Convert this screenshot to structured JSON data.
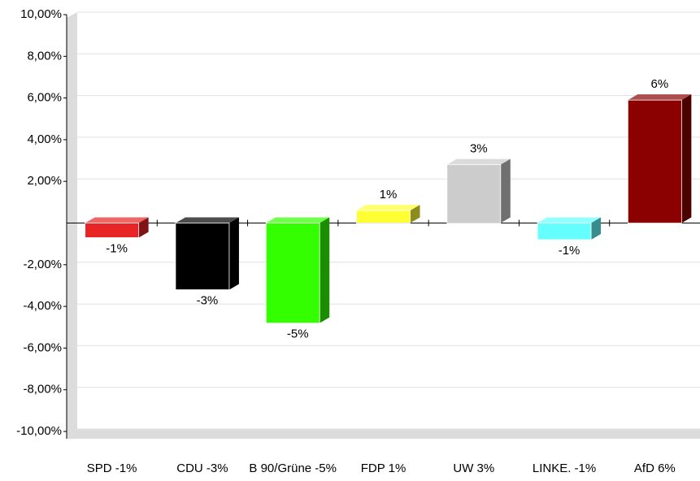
{
  "chart_data": {
    "type": "bar3d",
    "categories": [
      "SPD -1%",
      "CDU -3%",
      "B 90/Grüne -5%",
      "FDP 1%",
      "UW 3%",
      "LINKE. -1%",
      "AfD 6%"
    ],
    "values": [
      -0.7,
      -3.2,
      -4.8,
      0.6,
      2.8,
      -0.8,
      5.9
    ],
    "value_labels": [
      "-1%",
      "-3%",
      "-5%",
      "1%",
      "3%",
      "-1%",
      "6%"
    ],
    "colors": [
      "#e82525",
      "#000000",
      "#33ff00",
      "#ffff33",
      "#cccccc",
      "#66ffff",
      "#8b0000"
    ],
    "ylim": [
      -10,
      10
    ],
    "yticks": [
      {
        "value": -10,
        "label": "-10,00%"
      },
      {
        "value": -8,
        "label": "-8,00%"
      },
      {
        "value": -6,
        "label": "-6,00%"
      },
      {
        "value": -4,
        "label": "-4,00%"
      },
      {
        "value": -2,
        "label": "-2,00%"
      },
      {
        "value": 2,
        "label": "2,00%"
      },
      {
        "value": 4,
        "label": "4,00%"
      },
      {
        "value": 6,
        "label": "6,00%"
      },
      {
        "value": 8,
        "label": "8,00%"
      },
      {
        "value": 10,
        "label": "10,00%"
      }
    ],
    "grid": true
  }
}
